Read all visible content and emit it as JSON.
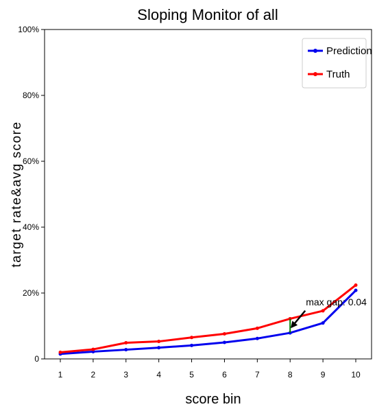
{
  "chart_data": {
    "type": "line",
    "title": "Sloping Monitor of all",
    "xlabel": "score bin",
    "ylabel": "target rate&avg score",
    "categories": [
      1,
      2,
      3,
      4,
      5,
      6,
      7,
      8,
      9,
      10
    ],
    "x_ticks": [
      "1",
      "2",
      "3",
      "4",
      "5",
      "6",
      "7",
      "8",
      "9",
      "10"
    ],
    "y_ticks": [
      "0",
      "20%",
      "40%",
      "60%",
      "80%",
      "100%"
    ],
    "ylim": [
      0,
      1
    ],
    "series": [
      {
        "name": "Prediction",
        "color": "#0000ee",
        "values": [
          0.015,
          0.022,
          0.028,
          0.034,
          0.041,
          0.05,
          0.062,
          0.079,
          0.109,
          0.208
        ]
      },
      {
        "name": "Truth",
        "color": "#ff0000",
        "values": [
          0.02,
          0.029,
          0.049,
          0.053,
          0.065,
          0.076,
          0.093,
          0.122,
          0.146,
          0.224
        ]
      }
    ],
    "annotation": {
      "text": "max gap: 0.04",
      "x": 8,
      "y_low": 0.079,
      "y_high": 0.122,
      "gap_color": "#008000"
    },
    "legend_position": "top-right",
    "grid": false
  }
}
